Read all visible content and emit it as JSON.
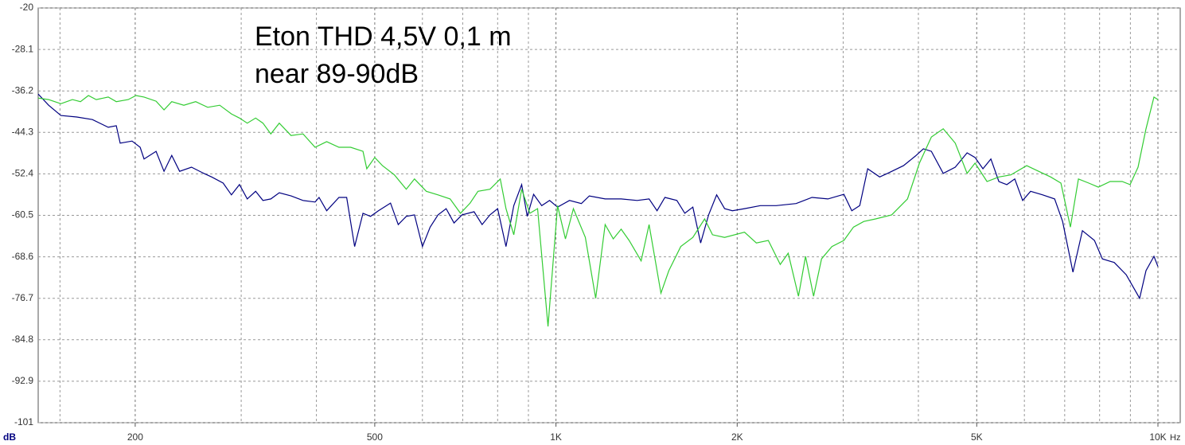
{
  "chart_data": {
    "type": "line",
    "title": [
      "Eton THD 4,5V 0,1 m",
      "near 89-90dB"
    ],
    "ylabel": "dB",
    "xunit": "Hz",
    "xscale": "log",
    "grid": true,
    "xlim": [
      138,
      10890
    ],
    "ylim": [
      -101,
      -20
    ],
    "yticks": [
      -20,
      -28.1,
      -36.2,
      -44.3,
      -52.4,
      -60.5,
      -68.6,
      -76.7,
      -84.8,
      -92.9,
      -101
    ],
    "xticks": [
      200,
      500,
      {
        "value": 1000,
        "label": "1K"
      },
      {
        "value": 2000,
        "label": "2K"
      },
      {
        "value": 5000,
        "label": "5K"
      },
      {
        "value": 10000,
        "label": "10K"
      }
    ],
    "xminor": [
      150,
      300,
      400,
      600,
      700,
      800,
      900,
      3000,
      4000,
      6000,
      7000,
      8000,
      9000
    ],
    "series": [
      {
        "color": "#000080",
        "x": [
          138,
          143.6,
          150.5,
          160,
          169.8,
          180.4,
          186,
          188.8,
          197.6,
          203.8,
          206.9,
          216.6,
          223.3,
          230,
          237,
          248,
          260,
          268,
          280,
          289,
          298,
          307,
          317,
          326,
          336,
          347,
          363,
          380,
          398,
          404,
          416,
          436,
          449,
          463,
          478,
          492,
          507,
          531,
          547,
          564,
          582,
          600,
          618,
          637,
          657,
          677,
          698,
          731,
          754,
          777,
          800,
          826,
          851,
          877,
          896,
          918,
          947,
          976,
          1006,
          1053,
          1102,
          1136,
          1207,
          1283,
          1364,
          1428,
          1472,
          1517,
          1588,
          1637,
          1688,
          1739,
          1793,
          1849,
          1906,
          1964,
          2057,
          2185,
          2322,
          2505,
          2663,
          2830,
          3008,
          3100,
          3196,
          3295,
          3449,
          3555,
          3779,
          3956,
          4078,
          4203,
          4399,
          4605,
          4820,
          4968,
          5121,
          5279,
          5442,
          5610,
          5783,
          5961,
          6145,
          6435,
          6736,
          6944,
          7224,
          7490,
          7843,
          8085,
          8458,
          8856,
          9325,
          9554,
          9849,
          10000
        ],
        "values": [
          -36.8,
          -39.0,
          -41.0,
          -41.3,
          -41.8,
          -43.3,
          -43.0,
          -46.4,
          -46.0,
          -47.2,
          -49.5,
          -48.0,
          -51.9,
          -48.8,
          -51.9,
          -51.1,
          -52.3,
          -53.0,
          -54.2,
          -56.5,
          -54.5,
          -57.3,
          -55.8,
          -57.6,
          -57.3,
          -56.1,
          -56.7,
          -57.6,
          -57.9,
          -57.0,
          -59.6,
          -57.0,
          -57.0,
          -66.6,
          -60.1,
          -60.7,
          -59.6,
          -58.1,
          -62.3,
          -60.7,
          -60.4,
          -66.6,
          -62.8,
          -60.4,
          -59.2,
          -62.0,
          -60.4,
          -59.8,
          -62.3,
          -60.4,
          -59.2,
          -66.6,
          -58.6,
          -54.5,
          -60.7,
          -56.4,
          -58.6,
          -57.6,
          -58.9,
          -57.6,
          -58.2,
          -56.7,
          -57.3,
          -57.3,
          -57.6,
          -57.3,
          -59.6,
          -57.0,
          -57.6,
          -60.1,
          -58.9,
          -65.9,
          -60.4,
          -56.5,
          -59.2,
          -59.6,
          -59.2,
          -58.6,
          -58.6,
          -58.2,
          -57.0,
          -57.3,
          -56.4,
          -59.6,
          -58.6,
          -51.4,
          -53.0,
          -52.3,
          -50.8,
          -48.9,
          -47.5,
          -48.0,
          -52.3,
          -51.1,
          -48.3,
          -49.2,
          -51.4,
          -49.5,
          -53.9,
          -54.5,
          -53.4,
          -57.6,
          -55.8,
          -56.5,
          -57.3,
          -61.7,
          -71.6,
          -63.5,
          -65.4,
          -69.0,
          -69.7,
          -72.1,
          -76.7,
          -71.3,
          -68.5,
          -70.5
        ]
      },
      {
        "color": "#33cc33",
        "x": [
          138,
          143.6,
          150.5,
          157.3,
          162.2,
          167.2,
          172.3,
          180.4,
          186,
          194.7,
          200.6,
          206.9,
          216.6,
          223.3,
          230,
          240.9,
          252.1,
          263.9,
          276.3,
          289,
          298,
          307,
          317,
          326,
          336,
          347,
          363,
          380,
          398,
          416,
          436,
          456,
          478,
          485,
          500,
          515,
          539,
          564,
          582,
          609,
          637,
          667,
          694,
          720,
          742,
          777,
          808,
          826,
          851,
          877,
          905,
          932,
          970,
          1006,
          1037,
          1069,
          1119,
          1164,
          1207,
          1245,
          1283,
          1323,
          1385,
          1428,
          1494,
          1540,
          1612,
          1688,
          1766,
          1820,
          1906,
          2057,
          2152,
          2253,
          2358,
          2431,
          2528,
          2598,
          2679,
          2762,
          2873,
          3008,
          3120,
          3246,
          3396,
          3611,
          3837,
          4016,
          4203,
          4399,
          4605,
          4820,
          4968,
          5200,
          5442,
          5696,
          6053,
          6337,
          6634,
          6899,
          7155,
          7379,
          7675,
          7961,
          8330,
          8721,
          8989,
          9268,
          9554,
          9849,
          10000
        ],
        "values": [
          -37.6,
          -37.9,
          -38.7,
          -37.9,
          -38.3,
          -37.1,
          -37.9,
          -37.4,
          -38.3,
          -37.9,
          -37.1,
          -37.4,
          -38.2,
          -39.9,
          -38.3,
          -39.0,
          -38.3,
          -39.4,
          -39.0,
          -40.7,
          -41.5,
          -42.5,
          -41.5,
          -42.5,
          -44.6,
          -42.5,
          -44.9,
          -44.6,
          -47.2,
          -46.1,
          -47.2,
          -47.2,
          -48.0,
          -51.4,
          -49.2,
          -50.8,
          -52.6,
          -55.4,
          -53.4,
          -55.8,
          -56.5,
          -57.3,
          -60.1,
          -58.1,
          -55.8,
          -55.4,
          -53.4,
          -59.2,
          -64.3,
          -55.4,
          -60.1,
          -59.2,
          -82.2,
          -58.6,
          -65.1,
          -59.2,
          -64.8,
          -76.7,
          -62.3,
          -65.1,
          -63.2,
          -65.4,
          -69.4,
          -62.3,
          -75.7,
          -71.3,
          -66.6,
          -64.8,
          -61.2,
          -64.3,
          -64.8,
          -63.8,
          -65.9,
          -65.4,
          -70.1,
          -67.9,
          -76.3,
          -68.5,
          -76.3,
          -69.0,
          -66.6,
          -65.4,
          -62.8,
          -61.7,
          -61.2,
          -60.4,
          -57.3,
          -50.3,
          -45.2,
          -43.6,
          -46.4,
          -52.3,
          -50.3,
          -53.9,
          -53.0,
          -52.6,
          -50.8,
          -51.9,
          -53.0,
          -54.2,
          -62.8,
          -53.4,
          -54.2,
          -55.0,
          -53.9,
          -53.9,
          -54.5,
          -51.1,
          -43.6,
          -37.4,
          -37.9
        ]
      }
    ]
  }
}
